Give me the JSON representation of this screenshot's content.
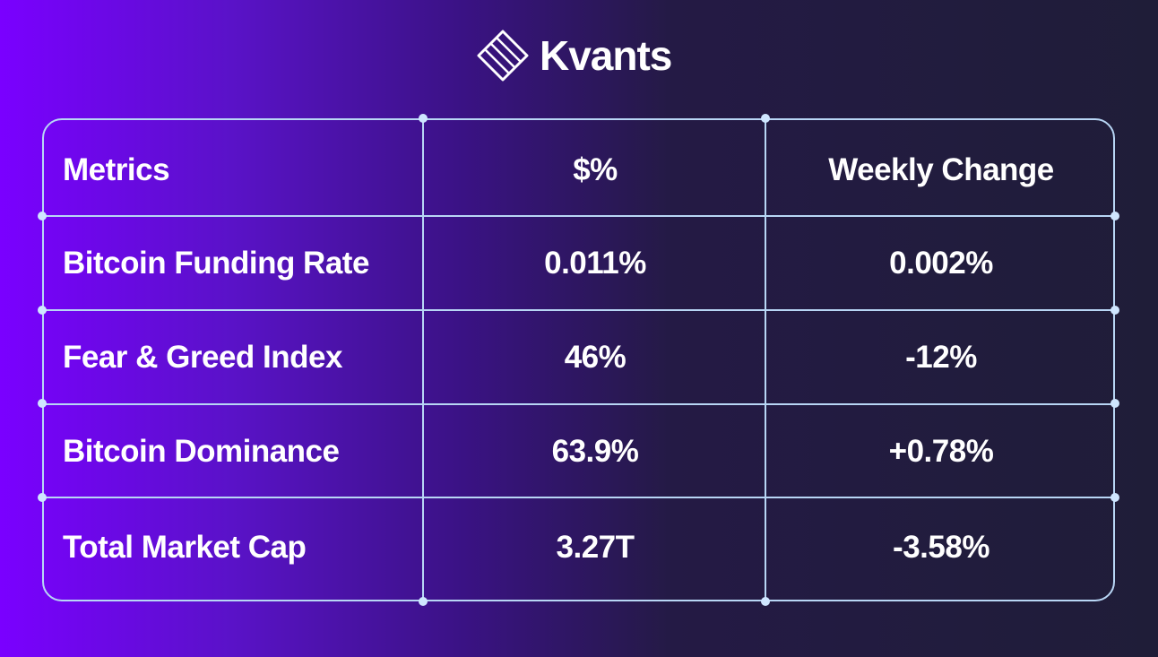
{
  "brand": {
    "name": "Kvants",
    "logo_icon": "striped-diamond-icon"
  },
  "table": {
    "headers": [
      "Metrics",
      "$%",
      "Weekly Change"
    ],
    "rows": [
      [
        "Bitcoin Funding Rate",
        "0.011%",
        "0.002%"
      ],
      [
        "Fear & Greed Index",
        "46%",
        "-12%"
      ],
      [
        "Bitcoin Dominance",
        "63.9%",
        "+0.78%"
      ],
      [
        "Total Market Cap",
        "3.27T",
        "-3.58%"
      ]
    ]
  },
  "colors": {
    "background_left": "#7a00ff",
    "background_right": "#1f1d38",
    "grid": "#b8d6f5",
    "text": "#ffffff"
  }
}
